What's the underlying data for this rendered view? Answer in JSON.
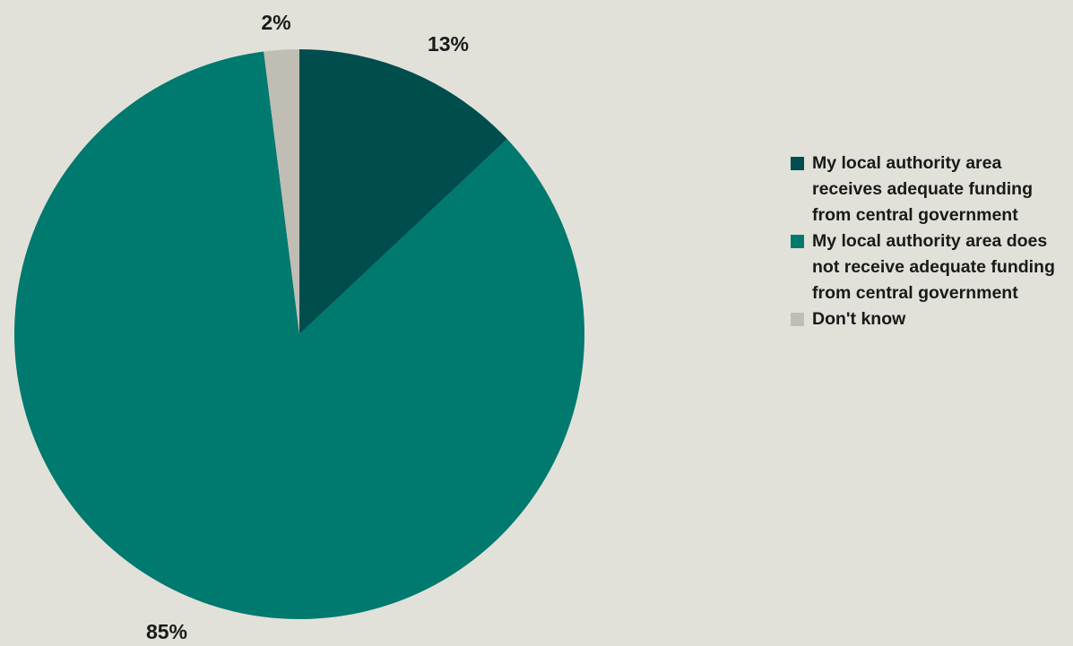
{
  "chart_data": {
    "type": "pie",
    "title": "",
    "slices": [
      {
        "label": "My local authority area receives adequate funding from central government",
        "value": 13,
        "value_label": "13%",
        "color": "#004d4d"
      },
      {
        "label": "My local authority area does not receive adequate funding from central government",
        "value": 85,
        "value_label": "85%",
        "color": "#00796e"
      },
      {
        "label": "Don't know",
        "value": 2,
        "value_label": "2%",
        "color": "#c0bdb5"
      }
    ],
    "legend_position": "right",
    "start_angle": "top",
    "direction": "clockwise"
  }
}
